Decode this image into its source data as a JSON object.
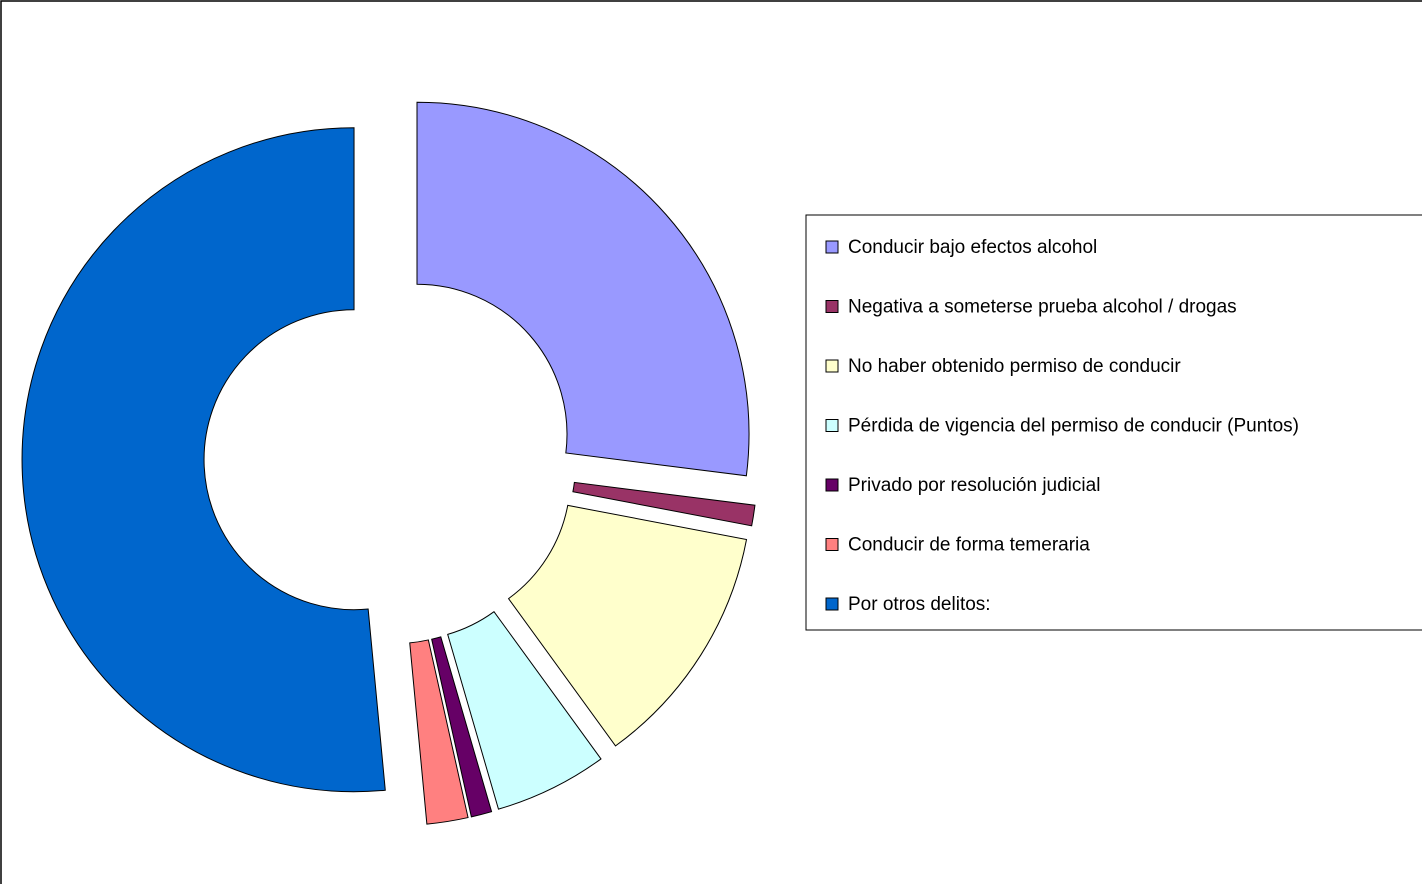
{
  "chart_data": {
    "type": "donut",
    "categories": [
      "Conducir bajo efectos alcohol",
      "Negativa a someterse prueba alcohol / drogas",
      "No haber obtenido permiso de conducir",
      "Pérdida de vigencia del permiso de conducir (Puntos)",
      "Privado por resolución judicial",
      "Conducir de forma temeraria",
      "Por otros delitos:"
    ],
    "values": [
      27,
      1,
      12,
      5.5,
      1,
      2,
      51.5
    ],
    "colors": [
      "#9999ff",
      "#993366",
      "#ffffcc",
      "#ccffff",
      "#660066",
      "#ff8080",
      "#0066cc"
    ],
    "legend": "right"
  }
}
